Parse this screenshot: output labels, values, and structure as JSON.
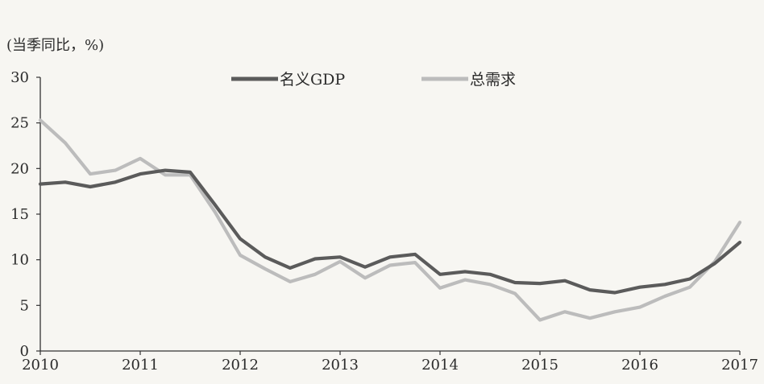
{
  "chart_data": {
    "type": "line",
    "ylabel": "(当季同比，%)",
    "ylim": [
      0,
      30
    ],
    "yticks": [
      "0",
      "5",
      "10",
      "15",
      "20",
      "25",
      "30"
    ],
    "xlim": [
      2010,
      2017
    ],
    "xticks": [
      "2010",
      "2011",
      "2012",
      "2013",
      "2014",
      "2015",
      "2016",
      "2017"
    ],
    "legend_position": "top-center",
    "series": [
      {
        "name": "名义GDP",
        "color": "#5b5b5b",
        "x": [
          2010.0,
          2010.25,
          2010.5,
          2010.75,
          2011.0,
          2011.25,
          2011.5,
          2011.75,
          2012.0,
          2012.25,
          2012.5,
          2012.75,
          2013.0,
          2013.25,
          2013.5,
          2013.75,
          2014.0,
          2014.25,
          2014.5,
          2014.75,
          2015.0,
          2015.25,
          2015.5,
          2015.75,
          2016.0,
          2016.25,
          2016.5,
          2016.75,
          2017.0
        ],
        "values": [
          18.3,
          18.5,
          18.0,
          18.5,
          19.4,
          19.8,
          19.6,
          16.0,
          12.3,
          10.3,
          9.1,
          10.1,
          10.3,
          9.2,
          10.3,
          10.6,
          8.4,
          8.7,
          8.4,
          7.5,
          7.4,
          7.7,
          6.7,
          6.4,
          7.0,
          7.3,
          7.9,
          9.6,
          11.9
        ]
      },
      {
        "name": "总需求",
        "color": "#bcbcbc",
        "x": [
          2010.0,
          2010.25,
          2010.5,
          2010.75,
          2011.0,
          2011.25,
          2011.5,
          2011.75,
          2012.0,
          2012.25,
          2012.5,
          2012.75,
          2013.0,
          2013.25,
          2013.5,
          2013.75,
          2014.0,
          2014.25,
          2014.5,
          2014.75,
          2015.0,
          2015.25,
          2015.5,
          2015.75,
          2016.0,
          2016.25,
          2016.5,
          2016.75,
          2017.0
        ],
        "values": [
          25.3,
          22.8,
          19.4,
          19.8,
          21.1,
          19.3,
          19.3,
          15.2,
          10.5,
          9.0,
          7.6,
          8.4,
          9.8,
          8.0,
          9.4,
          9.7,
          6.9,
          7.8,
          7.3,
          6.3,
          3.4,
          4.3,
          3.6,
          4.3,
          4.8,
          6.0,
          7.0,
          9.8,
          14.1
        ]
      }
    ]
  }
}
